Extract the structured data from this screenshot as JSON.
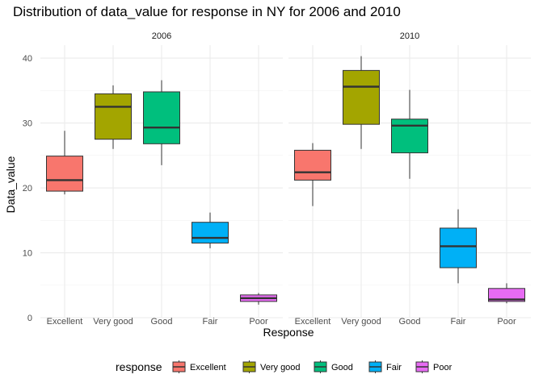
{
  "chart_data": {
    "type": "boxplot",
    "title": "Distribution of data_value for response in NY for 2006 and 2010",
    "xlabel": "Response",
    "ylabel": "Data_value",
    "ylim": [
      0,
      42
    ],
    "yticks": [
      0,
      10,
      20,
      30,
      40
    ],
    "categories": [
      "Excellent",
      "Very good",
      "Good",
      "Fair",
      "Poor"
    ],
    "colors": {
      "Excellent": "#F8766D",
      "Very good": "#A3A500",
      "Good": "#00BF7D",
      "Fair": "#00B0F6",
      "Poor": "#E76BF3"
    },
    "legend": {
      "title": "response",
      "position": "bottom"
    },
    "grid": true,
    "panels": [
      {
        "label": "2006",
        "boxes": [
          {
            "category": "Excellent",
            "min": 19.0,
            "q1": 19.5,
            "median": 21.2,
            "q3": 24.9,
            "max": 28.8
          },
          {
            "category": "Very good",
            "min": 26.0,
            "q1": 27.5,
            "median": 32.5,
            "q3": 34.5,
            "max": 35.8
          },
          {
            "category": "Good",
            "min": 23.5,
            "q1": 26.8,
            "median": 29.3,
            "q3": 34.8,
            "max": 36.6
          },
          {
            "category": "Fair",
            "min": 10.7,
            "q1": 11.5,
            "median": 12.3,
            "q3": 14.7,
            "max": 16.2
          },
          {
            "category": "Poor",
            "min": 2.0,
            "q1": 2.5,
            "median": 3.0,
            "q3": 3.5,
            "max": 3.8
          }
        ]
      },
      {
        "label": "2010",
        "boxes": [
          {
            "category": "Excellent",
            "min": 17.2,
            "q1": 21.2,
            "median": 22.4,
            "q3": 25.8,
            "max": 26.9
          },
          {
            "category": "Very good",
            "min": 26.0,
            "q1": 29.8,
            "median": 35.6,
            "q3": 38.1,
            "max": 40.3
          },
          {
            "category": "Good",
            "min": 21.4,
            "q1": 25.4,
            "median": 29.6,
            "q3": 30.6,
            "max": 35.1
          },
          {
            "category": "Fair",
            "min": 5.3,
            "q1": 7.7,
            "median": 11.0,
            "q3": 13.8,
            "max": 16.7
          },
          {
            "category": "Poor",
            "min": 2.2,
            "q1": 2.5,
            "median": 2.8,
            "q3": 4.5,
            "max": 5.3
          }
        ]
      }
    ]
  }
}
